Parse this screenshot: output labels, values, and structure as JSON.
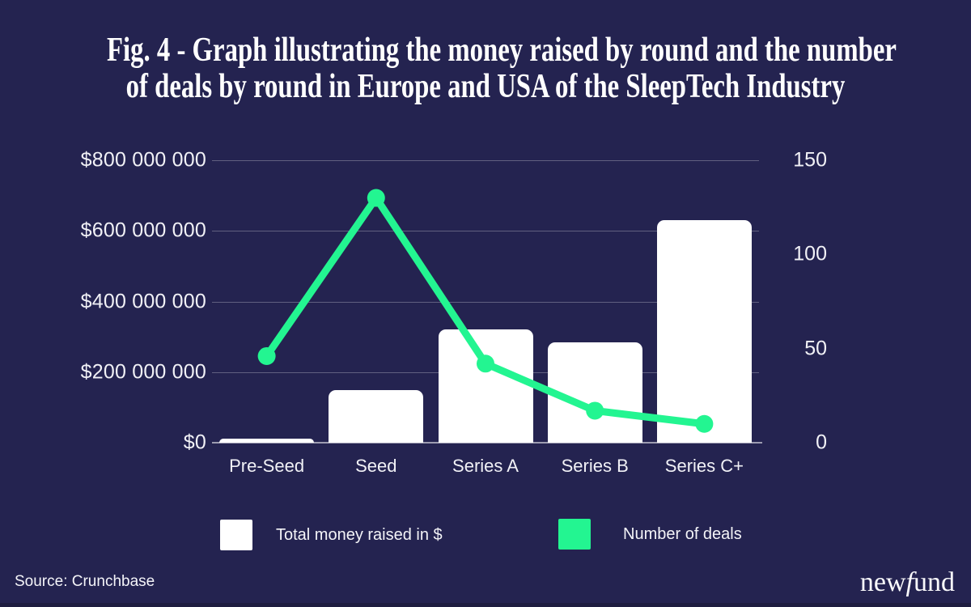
{
  "title_lines": [
    "Fig. 4 - Graph illustrating the money raised by round and the number",
    "of deals by round in Europe and USA of the SleepTech Industry"
  ],
  "source_note": "Source: Crunchbase",
  "logo": {
    "part1": "new",
    "part2": "f",
    "part3": "und"
  },
  "legend": {
    "money": "Total money raised in $",
    "deals": "Number of deals"
  },
  "colors": {
    "background": "#242350",
    "bar": "#FFFFFF",
    "line": "#23F591",
    "text": "#F1F1F6",
    "gridline": "rgba(255,255,255,0.28)"
  },
  "chart_data": {
    "type": "bar+line",
    "title": "Money raised by round and number of deals by round (Europe + USA, SleepTech)",
    "categories": [
      "Pre-Seed",
      "Seed",
      "Series A",
      "Series B",
      "Series C+"
    ],
    "series": [
      {
        "name": "Total money raised in $",
        "type": "bar",
        "axis": "left",
        "color": "#FFFFFF",
        "values": [
          12000000,
          150000000,
          320000000,
          285000000,
          630000000
        ]
      },
      {
        "name": "Number of deals",
        "type": "line",
        "axis": "right",
        "color": "#23F591",
        "values": [
          46,
          130,
          42,
          17,
          10
        ]
      }
    ],
    "left_axis": {
      "min": 0,
      "max": 800000000,
      "tick_labels": [
        "$800 000 000",
        "$600 000 000",
        "$400 000 000",
        "$200 000 000",
        "$0"
      ],
      "tick_values": [
        800000000,
        600000000,
        400000000,
        200000000,
        0
      ]
    },
    "right_axis": {
      "min": 0,
      "max": 150,
      "tick_labels": [
        "150",
        "100",
        "50",
        "0"
      ],
      "tick_values": [
        150,
        100,
        50,
        0
      ]
    },
    "grid": true,
    "legend_position": "bottom"
  }
}
